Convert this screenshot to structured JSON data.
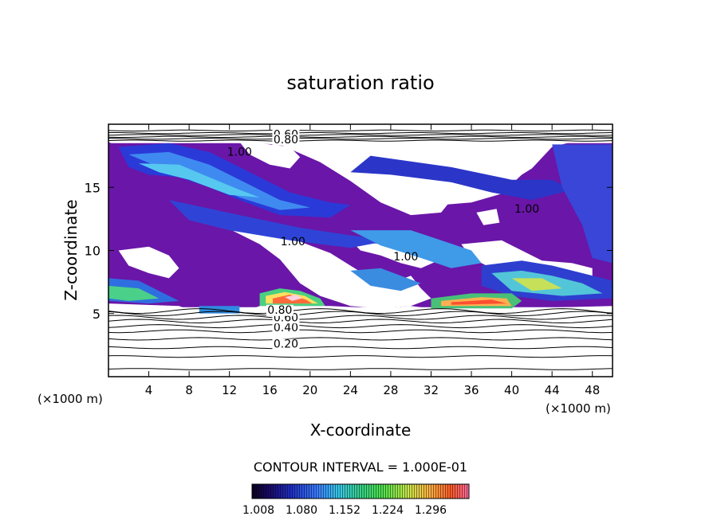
{
  "chart_data": {
    "type": "heatmap",
    "title": "saturation ratio",
    "xlabel": "X-coordinate",
    "ylabel": "Z-coordinate",
    "x_unit": "(×1000 m)",
    "x_unit_right": "(×1000 m)",
    "xlim": [
      0,
      50
    ],
    "ylim": [
      0,
      20
    ],
    "x_ticks": [
      "4",
      "8",
      "12",
      "16",
      "20",
      "24",
      "28",
      "32",
      "36",
      "40",
      "44",
      "48"
    ],
    "y_ticks": [
      "5",
      "10",
      "15"
    ],
    "contour_interval_label": "CONTOUR INTERVAL = 1.000E-01",
    "colorbar_labels": [
      "1.008",
      "1.080",
      "1.152",
      "1.224",
      "1.296"
    ],
    "colorbar_range": [
      1.0,
      1.32
    ],
    "contour_labels": [
      {
        "text": "0.20",
        "x": 17.6,
        "z": 2.3
      },
      {
        "text": "0.40",
        "x": 17.6,
        "z": 3.6
      },
      {
        "text": "0.60",
        "x": 17.6,
        "z": 4.4
      },
      {
        "text": "0.80",
        "x": 17.0,
        "z": 5.0
      },
      {
        "text": "1.00",
        "x": 13.0,
        "z": 17.5
      },
      {
        "text": "1.00",
        "x": 18.3,
        "z": 10.4
      },
      {
        "text": "1.00",
        "x": 29.5,
        "z": 9.2
      },
      {
        "text": "1.00",
        "x": 41.5,
        "z": 13.0
      },
      {
        "text": "0.60",
        "x": 17.6,
        "z": 18.9
      },
      {
        "text": "0.80",
        "x": 17.6,
        "z": 18.5
      }
    ]
  }
}
